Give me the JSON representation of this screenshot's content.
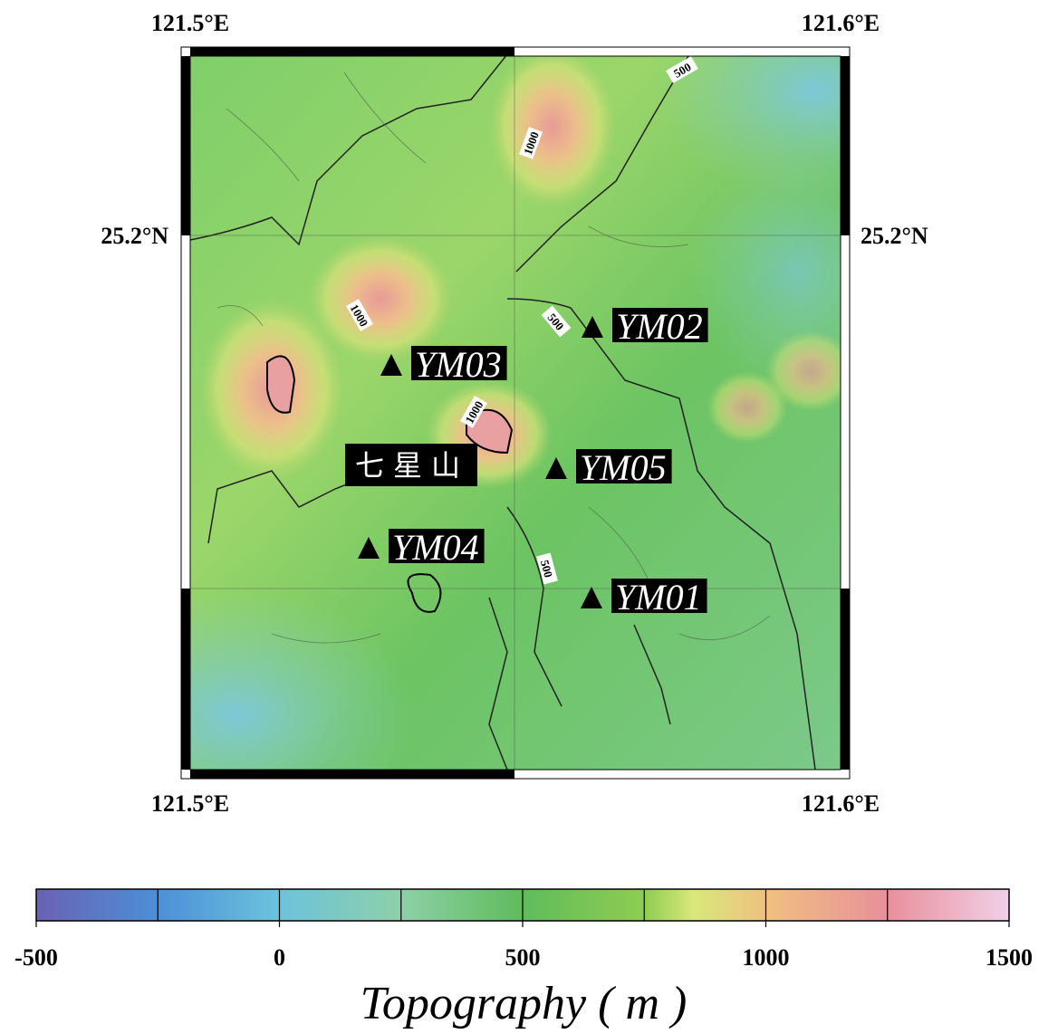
{
  "map": {
    "lon_labels_top": [
      "121.5°E",
      "121.6°E"
    ],
    "lon_labels_bottom": [
      "121.5°E",
      "121.6°E"
    ],
    "lat_labels": [
      "25.2°N",
      "25.2°N"
    ],
    "stations": [
      "YM02",
      "YM03",
      "YM05",
      "YM04",
      "YM01"
    ],
    "landmark": "七星山",
    "contour_labels": [
      "500",
      "1000",
      "1000",
      "500",
      "1000",
      "500"
    ]
  },
  "colorbar": {
    "range": [
      -500,
      1500
    ],
    "ticks": [
      -500,
      0,
      500,
      1000,
      1500
    ],
    "minor_ticks": [
      -250,
      0,
      250,
      500,
      750,
      1000,
      1250
    ],
    "label": "Topography ( m )",
    "color_stops": [
      {
        "value": -500,
        "color": "#6a62b3"
      },
      {
        "value": -250,
        "color": "#4c8fd8"
      },
      {
        "value": 0,
        "color": "#6cc3dc"
      },
      {
        "value": 250,
        "color": "#8ed0a8"
      },
      {
        "value": 500,
        "color": "#5fbc5a"
      },
      {
        "value": 750,
        "color": "#8fcc52"
      },
      {
        "value": 850,
        "color": "#d8e87a"
      },
      {
        "value": 1000,
        "color": "#f0c080"
      },
      {
        "value": 1250,
        "color": "#e8909a"
      },
      {
        "value": 1500,
        "color": "#f0d0e8"
      }
    ]
  }
}
